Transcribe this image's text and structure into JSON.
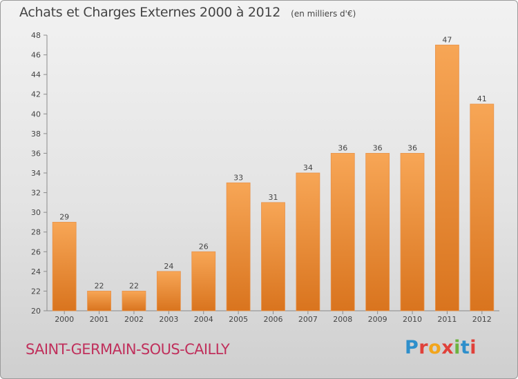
{
  "chart_data": {
    "type": "bar",
    "title": "Achats et Charges Externes 2000 à 2012",
    "subtitle": "(en milliers d'€)",
    "categories": [
      "2000",
      "2001",
      "2002",
      "2003",
      "2004",
      "2005",
      "2006",
      "2007",
      "2008",
      "2009",
      "2010",
      "2011",
      "2012"
    ],
    "values": [
      29,
      22,
      22,
      24,
      26,
      33,
      31,
      34,
      36,
      36,
      36,
      47,
      41
    ],
    "data_labels": [
      "29",
      "22",
      "22",
      "24",
      "26",
      "33",
      "31",
      "34",
      "36",
      "36",
      "36",
      "47",
      "41"
    ],
    "ylim": [
      20,
      48
    ],
    "yticks": [
      20,
      22,
      24,
      26,
      28,
      30,
      32,
      34,
      36,
      38,
      40,
      42,
      44,
      46,
      48
    ],
    "grid": false,
    "legend": "none",
    "bar_color_top": "#f7a656",
    "bar_color_bottom": "#d9741e"
  },
  "footer": {
    "place": "SAINT-GERMAIN-SOUS-CAILLY",
    "logo_text": "Proxiti",
    "logo_colors": [
      "#2e8fcb",
      "#e0413a",
      "#f2a51c",
      "#e0413a",
      "#6cb33f",
      "#2e8fcb",
      "#e0413a"
    ]
  }
}
